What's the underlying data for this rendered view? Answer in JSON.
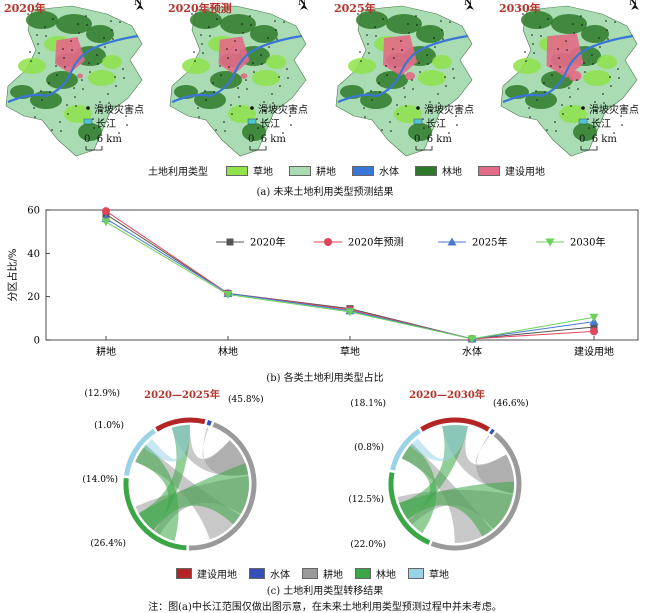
{
  "maps": {
    "titles": [
      "2020年",
      "2020年预测",
      "2025年",
      "2030年"
    ],
    "north_label": "N",
    "point_label": "滑坡灾害点",
    "river_label": "长江",
    "scale_label": "0  6 km"
  },
  "landuse_legend": {
    "label": "土地利用类型",
    "items": [
      {
        "name": "草地",
        "color": "#8fe24a"
      },
      {
        "name": "耕地",
        "color": "#a9dcb3"
      },
      {
        "name": "水体",
        "color": "#3a76d8"
      },
      {
        "name": "林地",
        "color": "#2f7a2a"
      },
      {
        "name": "建设用地",
        "color": "#e36a86"
      }
    ]
  },
  "captions": {
    "a": "(a) 未来土地利用类型预测结果",
    "b": "(b) 各类土地利用类型占比",
    "c": "(c) 土地利用类型转移结果",
    "note": "注：图(a)中长江范围仅做出图示意，在未来土地利用类型预测过程中并未考虑。"
  },
  "chart_data": [
    {
      "type": "line",
      "title": "",
      "xlabel": "",
      "ylabel": "分区占比/%",
      "categories": [
        "耕地",
        "林地",
        "草地",
        "水体",
        "建设用地"
      ],
      "ylim": [
        0,
        60
      ],
      "yticks": [
        0,
        20,
        40,
        60
      ],
      "grid": false,
      "legend": "top-center",
      "series": [
        {
          "name": "2020年",
          "color": "#555555",
          "marker": "square",
          "values": [
            58,
            21.5,
            14.5,
            0.5,
            6
          ]
        },
        {
          "name": "2020年预测",
          "color": "#e0455a",
          "marker": "circle",
          "values": [
            59.5,
            21.5,
            14,
            0.5,
            4
          ]
        },
        {
          "name": "2025年",
          "color": "#4a78d0",
          "marker": "triangle-up",
          "values": [
            56,
            21.5,
            13.5,
            0.5,
            8.5
          ]
        },
        {
          "name": "2030年",
          "color": "#6ad25a",
          "marker": "triangle-down",
          "values": [
            54.5,
            21,
            13,
            0.5,
            10.5
          ]
        }
      ]
    },
    {
      "type": "chord",
      "title": "2020—2025年",
      "segments": [
        {
          "label": "(12.9%)",
          "value": 12.9,
          "color": "#b32525"
        },
        {
          "label": "(1.0%)",
          "value": 1.0,
          "color": "#3550b8"
        },
        {
          "label": "(45.8%)",
          "value": 45.8,
          "color": "#9a9a9a"
        },
        {
          "label": "(26.4%)",
          "value": 26.4,
          "color": "#3aa646"
        },
        {
          "label": "(14.0%)",
          "value": 14.0,
          "color": "#9bd3e6"
        }
      ]
    },
    {
      "type": "chord",
      "title": "2020—2030年",
      "segments": [
        {
          "label": "(18.1%)",
          "value": 18.1,
          "color": "#b32525"
        },
        {
          "label": "(0.8%)",
          "value": 0.8,
          "color": "#3550b8"
        },
        {
          "label": "(46.6%)",
          "value": 46.6,
          "color": "#9a9a9a"
        },
        {
          "label": "(22.0%)",
          "value": 22.0,
          "color": "#3aa646"
        },
        {
          "label": "(12.5%)",
          "value": 12.5,
          "color": "#9bd3e6"
        }
      ]
    }
  ],
  "chord_legend": [
    {
      "name": "建设用地",
      "color": "#b32525"
    },
    {
      "name": "水体",
      "color": "#3550b8"
    },
    {
      "name": "耕地",
      "color": "#9a9a9a"
    },
    {
      "name": "林地",
      "color": "#3aa646"
    },
    {
      "name": "草地",
      "color": "#9bd3e6"
    }
  ]
}
